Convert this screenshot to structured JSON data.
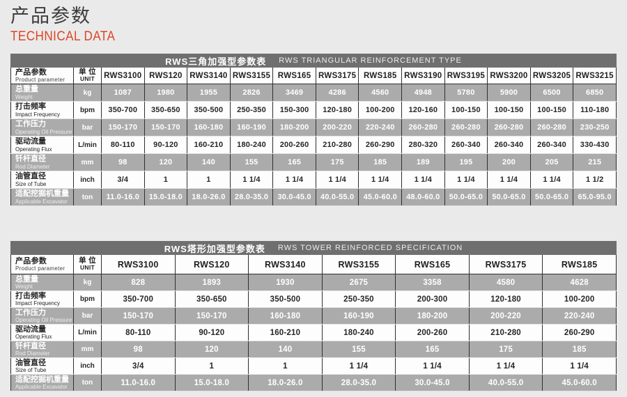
{
  "page": {
    "title_zh": "产品参数",
    "title_en": "TECHNICAL DATA",
    "accent_color": "#db4526",
    "title_bar_color": "#6f6f6f",
    "stripe_color": "#ababab"
  },
  "tables": [
    {
      "title_zh": "RWS三角加强型参数表",
      "title_en": "RWS TRIANGULAR REINFORCEMENT TYPE",
      "corner_zh": "产品参数",
      "corner_en": "Product parameter",
      "unit_zh": "单 位",
      "unit_en": "UNIT",
      "models": [
        "RWS3100",
        "RWS120",
        "RWS3140",
        "RWS3155",
        "RWS165",
        "RWS3175",
        "RWS185",
        "RWS3190",
        "RWS3195",
        "RWS3200",
        "RWS3205",
        "RWS3215"
      ],
      "rows": [
        {
          "label_zh": "总重量",
          "label_en": "Weight",
          "unit": "kg",
          "values": [
            "1087",
            "1980",
            "1955",
            "2826",
            "3469",
            "4286",
            "4560",
            "4948",
            "5780",
            "5900",
            "6500",
            "6850"
          ]
        },
        {
          "label_zh": "打击频率",
          "label_en": "Impact Frequency",
          "unit": "bpm",
          "values": [
            "350-700",
            "350-650",
            "350-500",
            "250-350",
            "150-300",
            "120-180",
            "100-200",
            "120-160",
            "100-150",
            "100-150",
            "100-150",
            "110-180"
          ]
        },
        {
          "label_zh": "工作压力",
          "label_en": "Operating Oil Pressure",
          "unit": "bar",
          "values": [
            "150-170",
            "150-170",
            "160-180",
            "160-190",
            "180-200",
            "200-220",
            "220-240",
            "260-280",
            "260-280",
            "260-280",
            "260-280",
            "230-250"
          ]
        },
        {
          "label_zh": "驱动流量",
          "label_en": "Operating Flux",
          "unit": "L/min",
          "values": [
            "80-110",
            "90-120",
            "160-210",
            "180-240",
            "200-260",
            "210-280",
            "260-290",
            "280-320",
            "260-340",
            "260-340",
            "260-340",
            "330-430"
          ]
        },
        {
          "label_zh": "钎杆直径",
          "label_en": "Rod Diameter",
          "unit": "mm",
          "values": [
            "98",
            "120",
            "140",
            "155",
            "165",
            "175",
            "185",
            "189",
            "195",
            "200",
            "205",
            "215"
          ]
        },
        {
          "label_zh": "油管直径",
          "label_en": "Size of Tube",
          "unit": "inch",
          "values": [
            "3/4",
            "1",
            "1",
            "1 1/4",
            "1 1/4",
            "1 1/4",
            "1 1/4",
            "1 1/4",
            "1 1/4",
            "1 1/4",
            "1 1/4",
            "1 1/2"
          ]
        },
        {
          "label_zh": "适配挖掘机重量",
          "label_en": "Applicable Excavator",
          "unit": "ton",
          "values": [
            "11.0-16.0",
            "15.0-18.0",
            "18.0-26.0",
            "28.0-35.0",
            "30.0-45.0",
            "40.0-55.0",
            "45.0-60.0",
            "48.0-60.0",
            "50.0-65.0",
            "50.0-65.0",
            "50.0-65.0",
            "65.0-95.0"
          ]
        }
      ]
    },
    {
      "title_zh": "RWS塔形加强型参数表",
      "title_en": "RWS TOWER REINFORCED SPECIFICATION",
      "corner_zh": "产品参数",
      "corner_en": "Product parameter",
      "unit_zh": "单 位",
      "unit_en": "UNIT",
      "models": [
        "RWS3100",
        "RWS120",
        "RWS3140",
        "RWS3155",
        "RWS165",
        "RWS3175",
        "RWS185"
      ],
      "rows": [
        {
          "label_zh": "总重量",
          "label_en": "Weight",
          "unit": "kg",
          "values": [
            "828",
            "1893",
            "1930",
            "2675",
            "3358",
            "4580",
            "4628"
          ]
        },
        {
          "label_zh": "打击频率",
          "label_en": "Impact Frequency",
          "unit": "bpm",
          "values": [
            "350-700",
            "350-650",
            "350-500",
            "250-350",
            "200-300",
            "120-180",
            "100-200"
          ]
        },
        {
          "label_zh": "工作压力",
          "label_en": "Operating Oil Pressure",
          "unit": "bar",
          "values": [
            "150-170",
            "150-170",
            "160-180",
            "160-190",
            "180-200",
            "200-220",
            "220-240"
          ]
        },
        {
          "label_zh": "驱动流量",
          "label_en": "Operating Flux",
          "unit": "L/min",
          "values": [
            "80-110",
            "90-120",
            "160-210",
            "180-240",
            "200-260",
            "210-280",
            "260-290"
          ]
        },
        {
          "label_zh": "钎杆直径",
          "label_en": "Rod Diameter",
          "unit": "mm",
          "values": [
            "98",
            "120",
            "140",
            "155",
            "165",
            "175",
            "185"
          ]
        },
        {
          "label_zh": "油管直径",
          "label_en": "Size of Tube",
          "unit": "inch",
          "values": [
            "3/4",
            "1",
            "1",
            "1 1/4",
            "1 1/4",
            "1 1/4",
            "1 1/4"
          ]
        },
        {
          "label_zh": "适配挖掘机重量",
          "label_en": "Applicable Excavator",
          "unit": "ton",
          "values": [
            "11.0-16.0",
            "15.0-18.0",
            "18.0-26.0",
            "28.0-35.0",
            "30.0-45.0",
            "40.0-55.0",
            "45.0-60.0"
          ]
        }
      ]
    }
  ]
}
